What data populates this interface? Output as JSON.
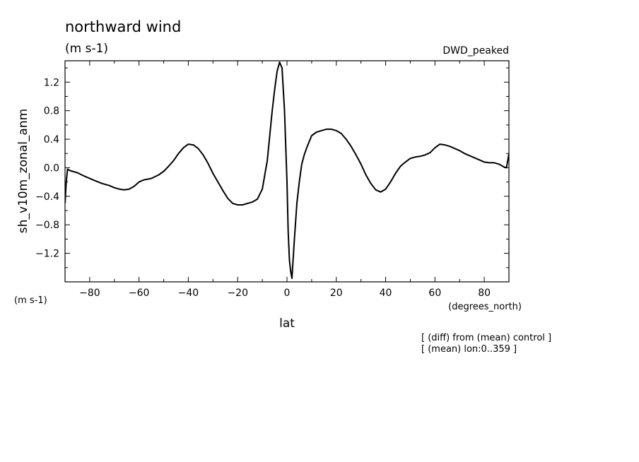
{
  "chart_data": {
    "type": "line",
    "title": "northward wind",
    "units": "(m s-1)",
    "subtitle_right": "DWD_peaked",
    "xlabel": "lat",
    "x_units": "(degrees_north)",
    "ylabel": "sh_v10m_zonal_anm",
    "y_units": "(m s-1)",
    "notes": [
      "[ (diff) from (mean) control ]",
      "[ (mean) lon:0..359 ]"
    ],
    "xlim": [
      -90,
      90
    ],
    "ylim": [
      -1.6,
      1.5
    ],
    "x_ticks": [
      -80,
      -60,
      -40,
      -20,
      0,
      20,
      40,
      60,
      80
    ],
    "x_tick_labels": [
      "−80",
      "−60",
      "−40",
      "−20",
      "0",
      "20",
      "40",
      "60",
      "80"
    ],
    "y_ticks": [
      1.2,
      0.8,
      0.4,
      0.0,
      -0.4,
      -0.8,
      -1.2
    ],
    "y_tick_labels": [
      "1.2",
      "0.8",
      "0.4",
      "0.0",
      "−0.4",
      "−0.8",
      "−1.2"
    ],
    "grid": false,
    "series": [
      {
        "x": [
          -90,
          -89.5,
          -89,
          -88,
          -85,
          -82,
          -78,
          -75,
          -72,
          -70,
          -68,
          -66,
          -64,
          -62,
          -60,
          -58,
          -55,
          -52,
          -50,
          -48,
          -46,
          -44,
          -42,
          -40,
          -38,
          -36,
          -34,
          -32,
          -30,
          -28,
          -26,
          -24,
          -22,
          -20,
          -18,
          -16,
          -14,
          -12,
          -10,
          -8,
          -6,
          -5,
          -4,
          -3,
          -2,
          -1,
          0,
          0.5,
          1,
          1.5,
          2,
          3,
          4,
          5,
          6,
          7,
          8,
          10,
          12,
          14,
          16,
          18,
          20,
          22,
          24,
          26,
          28,
          30,
          32,
          34,
          36,
          38,
          40,
          42,
          44,
          46,
          48,
          50,
          52,
          54,
          56,
          58,
          60,
          62,
          64,
          66,
          68,
          70,
          72,
          74,
          76,
          78,
          80,
          82,
          84,
          86,
          88,
          89,
          89.5,
          90
        ],
        "y": [
          -0.5,
          -0.2,
          -0.02,
          -0.04,
          -0.07,
          -0.12,
          -0.18,
          -0.22,
          -0.25,
          -0.28,
          -0.3,
          -0.31,
          -0.3,
          -0.26,
          -0.2,
          -0.17,
          -0.15,
          -0.1,
          -0.05,
          0.02,
          0.1,
          0.2,
          0.28,
          0.33,
          0.32,
          0.27,
          0.18,
          0.06,
          -0.08,
          -0.2,
          -0.32,
          -0.43,
          -0.5,
          -0.52,
          -0.52,
          -0.5,
          -0.48,
          -0.44,
          -0.3,
          0.1,
          0.8,
          1.1,
          1.35,
          1.48,
          1.4,
          0.8,
          -0.2,
          -0.9,
          -1.3,
          -1.45,
          -1.55,
          -1.0,
          -0.5,
          -0.2,
          0.05,
          0.18,
          0.28,
          0.45,
          0.5,
          0.52,
          0.54,
          0.54,
          0.52,
          0.48,
          0.4,
          0.3,
          0.18,
          0.05,
          -0.1,
          -0.22,
          -0.31,
          -0.34,
          -0.3,
          -0.2,
          -0.08,
          0.02,
          0.08,
          0.13,
          0.15,
          0.16,
          0.18,
          0.21,
          0.28,
          0.33,
          0.32,
          0.3,
          0.27,
          0.24,
          0.2,
          0.17,
          0.14,
          0.11,
          0.08,
          0.07,
          0.07,
          0.05,
          0.01,
          0.0,
          0.1,
          0.2
        ]
      }
    ]
  }
}
